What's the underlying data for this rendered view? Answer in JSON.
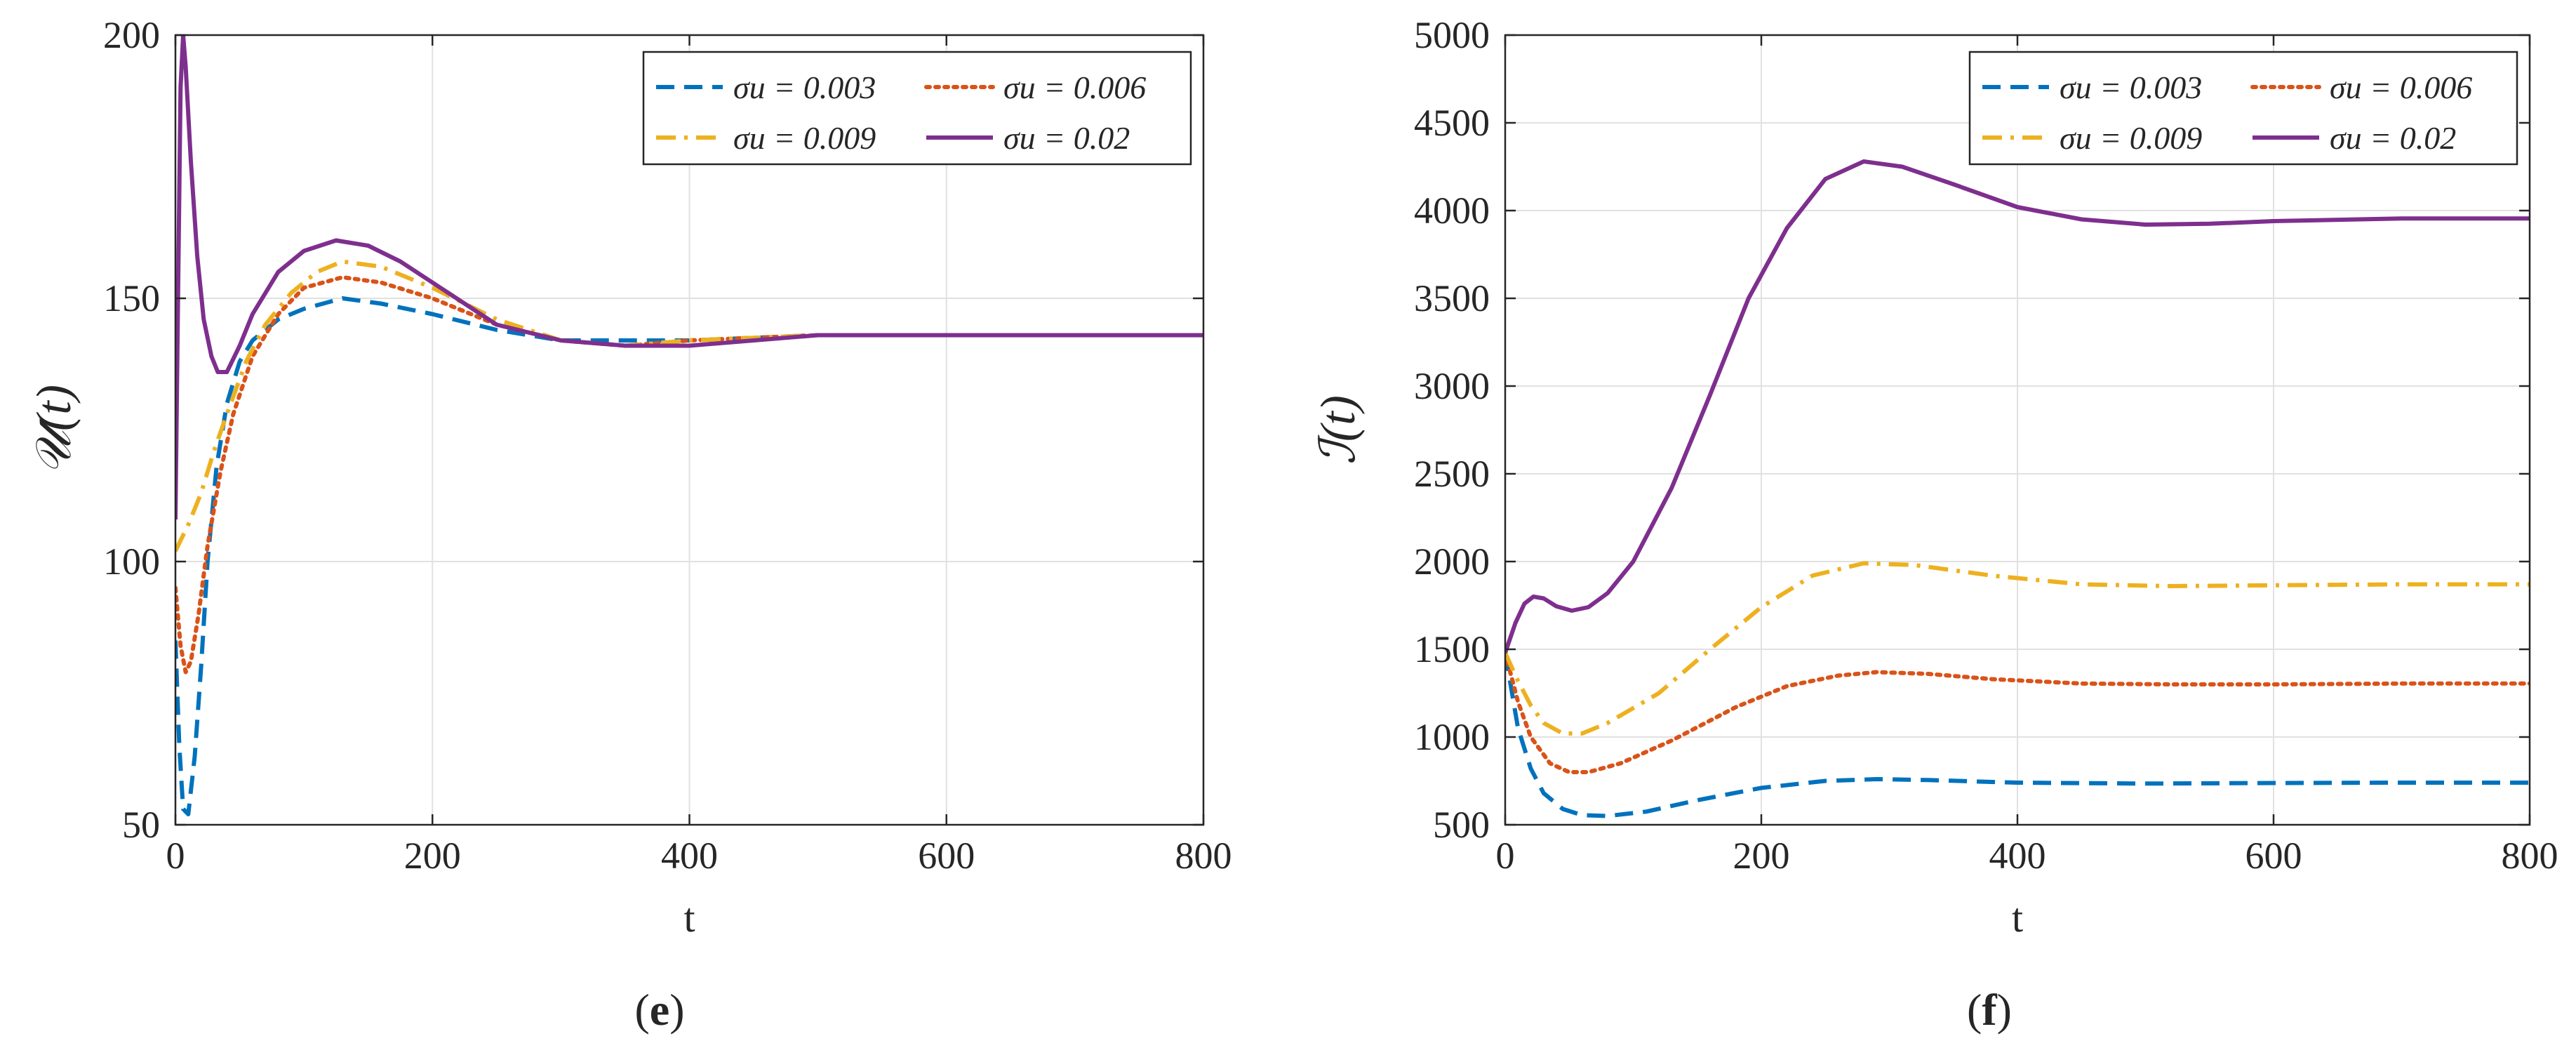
{
  "chart_data": [
    {
      "type": "line",
      "panel_label": {
        "open": "(",
        "letter": "e",
        "close": ")"
      },
      "xlabel": "t",
      "ylabel": "𝒰(t)",
      "xlim": [
        0,
        800
      ],
      "ylim": [
        50,
        200
      ],
      "xticks": [
        0,
        200,
        400,
        600,
        800
      ],
      "yticks": [
        50,
        100,
        150,
        200
      ],
      "grid": true,
      "legend_position": "top-right",
      "series": [
        {
          "name": "σu = 0.003",
          "color": "#0072BD",
          "style": "dashed",
          "points": [
            [
              0,
              85
            ],
            [
              3,
              65
            ],
            [
              6,
              53
            ],
            [
              10,
              52
            ],
            [
              15,
              63
            ],
            [
              20,
              80
            ],
            [
              25,
              100
            ],
            [
              32,
              118
            ],
            [
              40,
              130
            ],
            [
              50,
              138
            ],
            [
              60,
              142
            ],
            [
              80,
              146
            ],
            [
              100,
              148
            ],
            [
              130,
              150
            ],
            [
              160,
              149
            ],
            [
              200,
              147
            ],
            [
              250,
              144
            ],
            [
              300,
              142
            ],
            [
              350,
              142
            ],
            [
              400,
              142
            ],
            [
              500,
              143
            ],
            [
              600,
              143
            ],
            [
              700,
              143
            ],
            [
              800,
              143
            ]
          ]
        },
        {
          "name": "σu = 0.006",
          "color": "#D95319",
          "style": "dotted",
          "points": [
            [
              0,
              95
            ],
            [
              4,
              84
            ],
            [
              8,
              79
            ],
            [
              12,
              81
            ],
            [
              18,
              90
            ],
            [
              25,
              103
            ],
            [
              35,
              117
            ],
            [
              45,
              128
            ],
            [
              60,
              139
            ],
            [
              80,
              147
            ],
            [
              100,
              152
            ],
            [
              130,
              154
            ],
            [
              160,
              153
            ],
            [
              200,
              150
            ],
            [
              250,
              145
            ],
            [
              300,
              142
            ],
            [
              350,
              141
            ],
            [
              400,
              142
            ],
            [
              500,
              143
            ],
            [
              600,
              143
            ],
            [
              700,
              143
            ],
            [
              800,
              143
            ]
          ]
        },
        {
          "name": "σu = 0.009",
          "color": "#EDB120",
          "style": "dashdot",
          "points": [
            [
              0,
              102
            ],
            [
              4,
              104
            ],
            [
              10,
              107
            ],
            [
              20,
              113
            ],
            [
              30,
              121
            ],
            [
              40,
              128
            ],
            [
              55,
              138
            ],
            [
              70,
              145
            ],
            [
              90,
              151
            ],
            [
              110,
              155
            ],
            [
              130,
              157
            ],
            [
              160,
              156
            ],
            [
              200,
              152
            ],
            [
              250,
              146
            ],
            [
              300,
              142
            ],
            [
              350,
              141
            ],
            [
              400,
              142
            ],
            [
              500,
              143
            ],
            [
              600,
              143
            ],
            [
              700,
              143
            ],
            [
              800,
              143
            ]
          ]
        },
        {
          "name": "σu = 0.02",
          "color": "#7E2F8E",
          "style": "solid",
          "points": [
            [
              0,
              108
            ],
            [
              2,
              150
            ],
            [
              4,
              190
            ],
            [
              6,
              200
            ],
            [
              8,
              194
            ],
            [
              12,
              176
            ],
            [
              17,
              158
            ],
            [
              22,
              146
            ],
            [
              28,
              139
            ],
            [
              33,
              136
            ],
            [
              40,
              136
            ],
            [
              50,
              141
            ],
            [
              60,
              147
            ],
            [
              80,
              155
            ],
            [
              100,
              159
            ],
            [
              125,
              161
            ],
            [
              150,
              160
            ],
            [
              175,
              157
            ],
            [
              200,
              153
            ],
            [
              250,
              145
            ],
            [
              300,
              142
            ],
            [
              350,
              141
            ],
            [
              400,
              141
            ],
            [
              500,
              143
            ],
            [
              600,
              143
            ],
            [
              700,
              143
            ],
            [
              800,
              143
            ]
          ]
        }
      ]
    },
    {
      "type": "line",
      "panel_label": {
        "open": "(",
        "letter": "f",
        "close": ")"
      },
      "xlabel": "t",
      "ylabel": "ℐ(t)",
      "xlim": [
        0,
        800
      ],
      "ylim": [
        500,
        5000
      ],
      "xticks": [
        0,
        200,
        400,
        600,
        800
      ],
      "yticks": [
        500,
        1000,
        1500,
        2000,
        2500,
        3000,
        3500,
        4000,
        4500,
        5000
      ],
      "grid": true,
      "legend_position": "top-right",
      "series": [
        {
          "name": "σu = 0.003",
          "color": "#0072BD",
          "style": "dashed",
          "points": [
            [
              0,
              1480
            ],
            [
              10,
              1050
            ],
            [
              20,
              820
            ],
            [
              30,
              680
            ],
            [
              45,
              590
            ],
            [
              60,
              555
            ],
            [
              80,
              550
            ],
            [
              110,
              575
            ],
            [
              150,
              640
            ],
            [
              200,
              710
            ],
            [
              250,
              750
            ],
            [
              290,
              760
            ],
            [
              330,
              755
            ],
            [
              400,
              740
            ],
            [
              500,
              735
            ],
            [
              600,
              738
            ],
            [
              700,
              740
            ],
            [
              800,
              740
            ]
          ]
        },
        {
          "name": "σu = 0.006",
          "color": "#D95319",
          "style": "dotted",
          "points": [
            [
              0,
              1480
            ],
            [
              10,
              1200
            ],
            [
              20,
              1000
            ],
            [
              35,
              850
            ],
            [
              50,
              800
            ],
            [
              65,
              800
            ],
            [
              90,
              850
            ],
            [
              130,
              980
            ],
            [
              180,
              1170
            ],
            [
              220,
              1290
            ],
            [
              260,
              1350
            ],
            [
              290,
              1370
            ],
            [
              330,
              1360
            ],
            [
              380,
              1330
            ],
            [
              450,
              1305
            ],
            [
              520,
              1300
            ],
            [
              600,
              1300
            ],
            [
              700,
              1305
            ],
            [
              800,
              1305
            ]
          ]
        },
        {
          "name": "σu = 0.009",
          "color": "#EDB120",
          "style": "dashdot",
          "points": [
            [
              0,
              1480
            ],
            [
              10,
              1320
            ],
            [
              20,
              1180
            ],
            [
              30,
              1080
            ],
            [
              45,
              1020
            ],
            [
              60,
              1020
            ],
            [
              80,
              1080
            ],
            [
              120,
              1250
            ],
            [
              160,
              1500
            ],
            [
              200,
              1740
            ],
            [
              240,
              1920
            ],
            [
              280,
              1990
            ],
            [
              320,
              1980
            ],
            [
              380,
              1920
            ],
            [
              450,
              1870
            ],
            [
              520,
              1860
            ],
            [
              600,
              1865
            ],
            [
              700,
              1870
            ],
            [
              800,
              1870
            ]
          ]
        },
        {
          "name": "σu = 0.02",
          "color": "#7E2F8E",
          "style": "solid",
          "points": [
            [
              0,
              1480
            ],
            [
              8,
              1650
            ],
            [
              15,
              1760
            ],
            [
              22,
              1800
            ],
            [
              30,
              1790
            ],
            [
              40,
              1745
            ],
            [
              52,
              1720
            ],
            [
              65,
              1740
            ],
            [
              80,
              1820
            ],
            [
              100,
              2000
            ],
            [
              130,
              2420
            ],
            [
              160,
              2950
            ],
            [
              190,
              3500
            ],
            [
              220,
              3900
            ],
            [
              250,
              4180
            ],
            [
              280,
              4280
            ],
            [
              310,
              4250
            ],
            [
              350,
              4150
            ],
            [
              400,
              4020
            ],
            [
              450,
              3950
            ],
            [
              500,
              3920
            ],
            [
              550,
              3925
            ],
            [
              600,
              3940
            ],
            [
              700,
              3955
            ],
            [
              800,
              3955
            ]
          ]
        }
      ]
    }
  ]
}
